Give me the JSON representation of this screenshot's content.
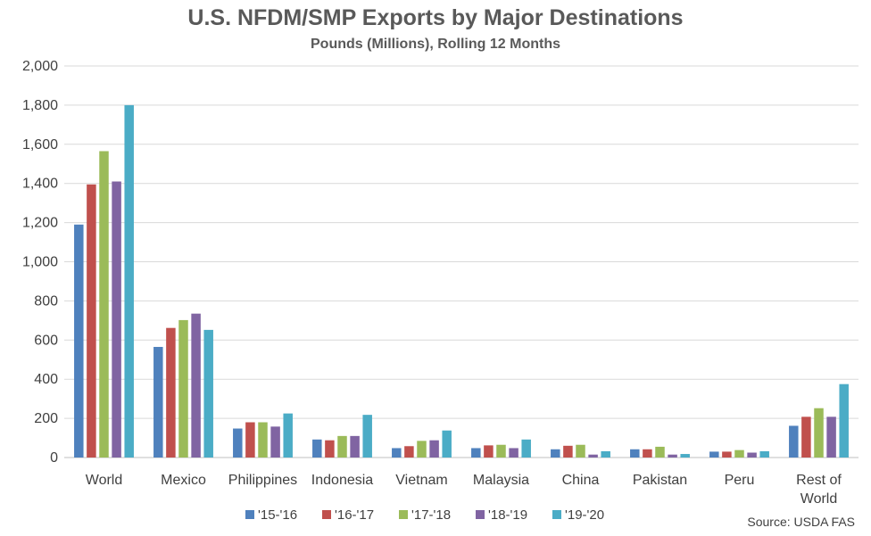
{
  "chart_data": {
    "type": "bar",
    "title": "U.S. NFDM/SMP Exports by Major Destinations",
    "subtitle": "Pounds (Millions), Rolling 12 Months",
    "categories": [
      "World",
      "Mexico",
      "Philippines",
      "Indonesia",
      "Vietnam",
      "Malaysia",
      "China",
      "Pakistan",
      "Peru",
      "Rest of World"
    ],
    "series": [
      {
        "name": "'15-'16",
        "color": "#4f81bd",
        "values": [
          1190,
          565,
          148,
          92,
          48,
          48,
          42,
          42,
          30,
          162
        ]
      },
      {
        "name": "'16-'17",
        "color": "#c0504d",
        "values": [
          1395,
          662,
          180,
          88,
          58,
          62,
          60,
          42,
          30,
          208
        ]
      },
      {
        "name": "'17-'18",
        "color": "#9bbb59",
        "values": [
          1565,
          702,
          180,
          110,
          85,
          65,
          65,
          55,
          38,
          252
        ]
      },
      {
        "name": "'18-'19",
        "color": "#8064a2",
        "values": [
          1410,
          735,
          158,
          110,
          88,
          48,
          15,
          15,
          25,
          208
        ]
      },
      {
        "name": "'19-'20",
        "color": "#4bacc6",
        "values": [
          1800,
          652,
          225,
          218,
          138,
          92,
          32,
          18,
          32,
          375
        ]
      }
    ],
    "ylim": [
      0,
      2000
    ],
    "yticks": [
      "0",
      "200",
      "400",
      "600",
      "800",
      "1,000",
      "1,200",
      "1,400",
      "1,600",
      "1,800",
      "2,000"
    ],
    "legend_position": "bottom",
    "grid": true
  },
  "source": "Source: USDA FAS"
}
